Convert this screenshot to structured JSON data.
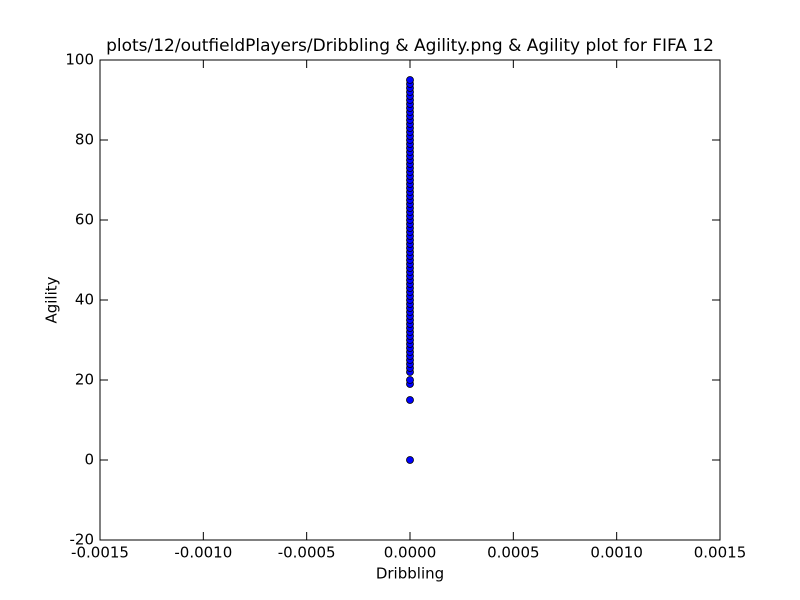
{
  "chart_data": {
    "type": "scatter",
    "title": "plots/12/outfieldPlayers/Dribbling & Agility.png & Agility plot for FIFA 12",
    "xlabel": "Dribbling",
    "ylabel": "Agility",
    "x": [
      0,
      0,
      0,
      0,
      0,
      0,
      0,
      0,
      0,
      0,
      0,
      0,
      0,
      0,
      0,
      0,
      0,
      0,
      0,
      0,
      0,
      0,
      0,
      0,
      0,
      0,
      0,
      0,
      0,
      0,
      0,
      0,
      0,
      0,
      0,
      0,
      0,
      0,
      0,
      0,
      0,
      0,
      0,
      0,
      0,
      0,
      0,
      0,
      0,
      0,
      0,
      0,
      0,
      0,
      0,
      0,
      0,
      0,
      0,
      0,
      0,
      0,
      0,
      0,
      0,
      0,
      0,
      0,
      0,
      0,
      0,
      0,
      0,
      0,
      0,
      0,
      0,
      0
    ],
    "y": [
      0,
      15,
      19,
      20,
      22,
      23,
      24,
      25,
      26,
      27,
      28,
      29,
      30,
      31,
      32,
      33,
      34,
      35,
      36,
      37,
      38,
      39,
      40,
      41,
      42,
      43,
      44,
      45,
      46,
      47,
      48,
      49,
      50,
      51,
      52,
      53,
      54,
      55,
      56,
      57,
      58,
      59,
      60,
      61,
      62,
      63,
      64,
      65,
      66,
      67,
      68,
      69,
      70,
      71,
      72,
      73,
      74,
      75,
      76,
      77,
      78,
      79,
      80,
      81,
      82,
      83,
      84,
      85,
      86,
      87,
      88,
      89,
      90,
      91,
      92,
      93,
      94,
      95
    ],
    "color": "#0000ff",
    "xlim": [
      -0.0015,
      0.0015
    ],
    "xticks": [
      {
        "value": -0.0015,
        "label": "-0.0015"
      },
      {
        "value": -0.001,
        "label": "-0.0010"
      },
      {
        "value": -0.0005,
        "label": "-0.0005"
      },
      {
        "value": 0,
        "label": "0.0000"
      },
      {
        "value": 0.0005,
        "label": "0.0005"
      },
      {
        "value": 0.001,
        "label": "0.0010"
      },
      {
        "value": 0.0015,
        "label": "0.0015"
      }
    ],
    "ylim": [
      -20,
      100
    ],
    "yticks": [
      -20,
      0,
      20,
      40,
      60,
      80,
      100
    ],
    "grid": false
  }
}
